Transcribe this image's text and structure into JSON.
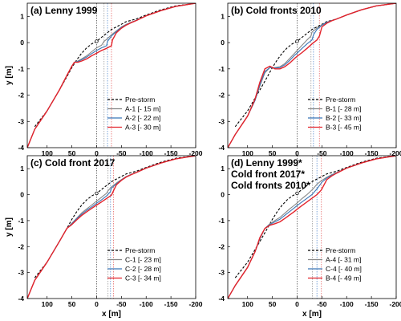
{
  "chart_data": [
    {
      "type": "line",
      "title": "(a) Lenny 1999",
      "title_lines": [
        "(a) Lenny 1999"
      ],
      "xlabel": "",
      "ylabel": "y [m]",
      "xlim": [
        140,
        -200
      ],
      "ylim": [
        -4,
        1.5
      ],
      "xticks": [
        100,
        50,
        0,
        -50,
        -100,
        -150,
        -200
      ],
      "yticks": [
        1,
        0,
        -1,
        -2,
        -3,
        -4
      ],
      "legend_position": "bottom-right",
      "colors": {
        "Pre-storm": "#000000",
        "1": "#888888",
        "2": "#3b76b7",
        "3": "#e3232b"
      },
      "vlines": [
        {
          "x": 0,
          "color": "#555555"
        },
        {
          "x": -15,
          "color": "#999999"
        },
        {
          "x": -22,
          "color": "#5b8fd0"
        },
        {
          "x": -30,
          "color": "#e66a6a"
        }
      ],
      "series": [
        {
          "name": "Pre-storm",
          "dashed": true,
          "x": [
            125,
            100,
            75,
            60,
            50,
            40,
            30,
            20,
            10,
            0,
            -10,
            -20,
            -30,
            -40,
            -50,
            -60,
            -70,
            -80,
            -100,
            -130,
            -160,
            -200
          ],
          "y": [
            -3.2,
            -2.6,
            -1.8,
            -1.3,
            -0.95,
            -0.65,
            -0.4,
            -0.2,
            -0.05,
            0.05,
            0.2,
            0.35,
            0.5,
            0.6,
            0.7,
            0.8,
            0.85,
            0.9,
            1.05,
            1.25,
            1.4,
            1.5
          ]
        },
        {
          "name": "A-1 [- 15 m]",
          "x": [
            140,
            125,
            100,
            75,
            60,
            50,
            45,
            38,
            30,
            20,
            10,
            0,
            -10,
            -15,
            -20,
            -30,
            -40,
            -50,
            -60,
            -70,
            -80,
            -100,
            -130,
            -160,
            -200
          ],
          "y": [
            -4,
            -3.3,
            -2.6,
            -1.8,
            -1.25,
            -0.9,
            -0.75,
            -0.7,
            -0.62,
            -0.5,
            -0.35,
            -0.2,
            -0.1,
            0.05,
            0.12,
            0.3,
            0.45,
            0.6,
            0.7,
            0.78,
            0.85,
            1.02,
            1.22,
            1.38,
            1.5
          ]
        },
        {
          "name": "A-2 [- 22 m]",
          "x": [
            140,
            125,
            100,
            75,
            60,
            50,
            45,
            38,
            30,
            20,
            10,
            0,
            -10,
            -20,
            -22,
            -30,
            -40,
            -50,
            -60,
            -70,
            -80,
            -100,
            -130,
            -160,
            -200
          ],
          "y": [
            -4,
            -3.3,
            -2.6,
            -1.8,
            -1.25,
            -0.9,
            -0.75,
            -0.72,
            -0.65,
            -0.55,
            -0.42,
            -0.3,
            -0.2,
            -0.12,
            0.05,
            0.25,
            0.42,
            0.58,
            0.68,
            0.77,
            0.85,
            1.02,
            1.22,
            1.38,
            1.5
          ]
        },
        {
          "name": "A-3 [- 30 m]",
          "x": [
            140,
            125,
            100,
            75,
            60,
            50,
            45,
            38,
            30,
            20,
            10,
            0,
            -10,
            -20,
            -30,
            -32,
            -40,
            -50,
            -60,
            -70,
            -80,
            -100,
            -130,
            -160,
            -200
          ],
          "y": [
            -4,
            -3.3,
            -2.6,
            -1.8,
            -1.25,
            -0.9,
            -0.75,
            -0.75,
            -0.7,
            -0.62,
            -0.5,
            -0.4,
            -0.3,
            -0.22,
            -0.12,
            0.1,
            0.38,
            0.55,
            0.67,
            0.76,
            0.84,
            1.02,
            1.22,
            1.38,
            1.5
          ]
        }
      ]
    },
    {
      "type": "line",
      "title": "(b) Cold fronts 2010",
      "title_lines": [
        "(b) Cold fronts 2010"
      ],
      "xlabel": "",
      "ylabel": "",
      "xlim": [
        140,
        -200
      ],
      "ylim": [
        -4,
        1.5
      ],
      "xticks": [
        100,
        50,
        0,
        -50,
        -100,
        -150,
        -200
      ],
      "yticks": [
        1,
        0,
        -1,
        -2,
        -3,
        -4
      ],
      "legend_position": "bottom-right",
      "colors": {
        "Pre-storm": "#000000",
        "1": "#888888",
        "2": "#3b76b7",
        "3": "#e3232b"
      },
      "vlines": [
        {
          "x": 0,
          "color": "#555555"
        },
        {
          "x": -28,
          "color": "#999999"
        },
        {
          "x": -33,
          "color": "#5b8fd0"
        },
        {
          "x": -45,
          "color": "#e66a6a"
        }
      ],
      "series": [
        {
          "name": "Pre-storm",
          "dashed": true,
          "x": [
            125,
            100,
            75,
            60,
            50,
            40,
            30,
            20,
            10,
            0,
            -10,
            -20,
            -30,
            -40,
            -50,
            -60,
            -70,
            -80,
            -100,
            -130,
            -160,
            -200
          ],
          "y": [
            -3.2,
            -2.6,
            -1.8,
            -1.3,
            -0.95,
            -0.65,
            -0.4,
            -0.2,
            -0.05,
            0.05,
            0.2,
            0.35,
            0.5,
            0.6,
            0.7,
            0.8,
            0.85,
            0.9,
            1.05,
            1.25,
            1.4,
            1.5
          ]
        },
        {
          "name": "B-1 [- 28 m]",
          "x": [
            140,
            125,
            100,
            85,
            75,
            65,
            55,
            45,
            35,
            25,
            15,
            5,
            0,
            -10,
            -20,
            -28,
            -30,
            -40,
            -50,
            -60,
            -70,
            -80,
            -100,
            -130,
            -160,
            -200
          ],
          "y": [
            -4,
            -3.5,
            -2.8,
            -2.2,
            -1.65,
            -1.15,
            -0.95,
            -0.95,
            -0.92,
            -0.8,
            -0.6,
            -0.4,
            -0.3,
            -0.1,
            0.1,
            0.25,
            0.4,
            0.55,
            0.68,
            0.78,
            0.84,
            0.9,
            1.05,
            1.25,
            1.4,
            1.5
          ]
        },
        {
          "name": "B-2 [- 33 m]",
          "x": [
            140,
            125,
            100,
            85,
            75,
            65,
            55,
            45,
            35,
            25,
            15,
            5,
            0,
            -10,
            -20,
            -30,
            -33,
            -40,
            -50,
            -60,
            -70,
            -80,
            -100,
            -130,
            -160,
            -200
          ],
          "y": [
            -4,
            -3.5,
            -2.8,
            -2.2,
            -1.6,
            -1.1,
            -0.95,
            -0.97,
            -0.95,
            -0.85,
            -0.68,
            -0.48,
            -0.4,
            -0.22,
            -0.05,
            0.1,
            0.3,
            0.5,
            0.66,
            0.77,
            0.84,
            0.9,
            1.05,
            1.25,
            1.4,
            1.5
          ]
        },
        {
          "name": "B-3 [- 45 m]",
          "x": [
            140,
            125,
            100,
            85,
            75,
            65,
            55,
            45,
            35,
            25,
            15,
            5,
            0,
            -10,
            -20,
            -30,
            -40,
            -45,
            -50,
            -60,
            -70,
            -80,
            -100,
            -130,
            -160,
            -200
          ],
          "y": [
            -4,
            -3.5,
            -2.8,
            -2.15,
            -1.5,
            -1.0,
            -0.9,
            -1.0,
            -1.0,
            -0.92,
            -0.78,
            -0.6,
            -0.52,
            -0.38,
            -0.22,
            -0.05,
            0.1,
            0.25,
            0.6,
            0.74,
            0.83,
            0.9,
            1.05,
            1.25,
            1.4,
            1.5
          ]
        }
      ]
    },
    {
      "type": "line",
      "title": "(c) Cold front 2017",
      "title_lines": [
        "(c) Cold front 2017"
      ],
      "xlabel": "x [m]",
      "ylabel": "y [m]",
      "xlim": [
        140,
        -200
      ],
      "ylim": [
        -4,
        1.5
      ],
      "xticks": [
        100,
        50,
        0,
        -50,
        -100,
        -150,
        -200
      ],
      "yticks": [
        1,
        0,
        -1,
        -2,
        -3,
        -4
      ],
      "legend_position": "bottom-right",
      "colors": {
        "Pre-storm": "#000000",
        "1": "#888888",
        "2": "#3b76b7",
        "3": "#e3232b"
      },
      "vlines": [
        {
          "x": 0,
          "color": "#555555"
        },
        {
          "x": -23,
          "color": "#999999"
        },
        {
          "x": -28,
          "color": "#5b8fd0"
        },
        {
          "x": -34,
          "color": "#e66a6a"
        }
      ],
      "series": [
        {
          "name": "Pre-storm",
          "dashed": true,
          "x": [
            125,
            100,
            75,
            60,
            50,
            40,
            30,
            20,
            10,
            0,
            -10,
            -20,
            -30,
            -40,
            -50,
            -60,
            -70,
            -80,
            -100,
            -130,
            -160,
            -200
          ],
          "y": [
            -3.2,
            -2.6,
            -1.8,
            -1.3,
            -0.95,
            -0.65,
            -0.4,
            -0.2,
            -0.05,
            0.05,
            0.2,
            0.35,
            0.5,
            0.6,
            0.7,
            0.8,
            0.85,
            0.9,
            1.05,
            1.25,
            1.4,
            1.5
          ]
        },
        {
          "name": "C-1 [- 23 m]",
          "x": [
            140,
            125,
            100,
            75,
            60,
            50,
            40,
            30,
            20,
            10,
            0,
            -10,
            -20,
            -23,
            -30,
            -40,
            -50,
            -60,
            -70,
            -80,
            -100,
            -130,
            -160,
            -200
          ],
          "y": [
            -4,
            -3.3,
            -2.6,
            -1.8,
            -1.3,
            -1.1,
            -0.9,
            -0.7,
            -0.55,
            -0.4,
            -0.25,
            -0.1,
            0.05,
            0.15,
            0.3,
            0.45,
            0.58,
            0.7,
            0.78,
            0.85,
            1.02,
            1.22,
            1.38,
            1.5
          ]
        },
        {
          "name": "C-2 [- 28 m]",
          "x": [
            140,
            125,
            100,
            75,
            60,
            50,
            40,
            30,
            20,
            10,
            0,
            -10,
            -20,
            -28,
            -30,
            -40,
            -50,
            -60,
            -70,
            -80,
            -100,
            -130,
            -160,
            -200
          ],
          "y": [
            -4,
            -3.3,
            -2.6,
            -1.8,
            -1.3,
            -1.12,
            -0.92,
            -0.75,
            -0.6,
            -0.47,
            -0.33,
            -0.2,
            -0.05,
            0.12,
            0.25,
            0.42,
            0.57,
            0.69,
            0.78,
            0.85,
            1.02,
            1.22,
            1.38,
            1.5
          ]
        },
        {
          "name": "C-3 [- 34 m]",
          "x": [
            140,
            125,
            100,
            75,
            60,
            50,
            40,
            30,
            20,
            10,
            0,
            -10,
            -20,
            -30,
            -34,
            -40,
            -50,
            -60,
            -70,
            -80,
            -100,
            -130,
            -160,
            -200
          ],
          "y": [
            -4,
            -3.3,
            -2.6,
            -1.8,
            -1.3,
            -1.15,
            -0.97,
            -0.8,
            -0.66,
            -0.53,
            -0.4,
            -0.28,
            -0.15,
            -0.02,
            0.15,
            0.38,
            0.55,
            0.68,
            0.77,
            0.85,
            1.02,
            1.22,
            1.38,
            1.5
          ]
        }
      ]
    },
    {
      "type": "line",
      "title": "(d) Lenny 1999* Cold front 2017* Cold fronts 2010*",
      "title_lines": [
        "(d) Lenny 1999*",
        "Cold front 2017*",
        "Cold fronts 2010*"
      ],
      "xlabel": "x [m]",
      "ylabel": "",
      "xlim": [
        140,
        -200
      ],
      "ylim": [
        -4,
        1.5
      ],
      "xticks": [
        100,
        50,
        0,
        -50,
        -100,
        -150,
        -200
      ],
      "yticks": [
        1,
        0,
        -1,
        -2,
        -3,
        -4
      ],
      "legend_position": "bottom-right",
      "colors": {
        "Pre-storm": "#000000",
        "1": "#888888",
        "2": "#3b76b7",
        "3": "#e3232b"
      },
      "vlines": [
        {
          "x": 0,
          "color": "#555555"
        },
        {
          "x": -31,
          "color": "#999999"
        },
        {
          "x": -40,
          "color": "#5b8fd0"
        },
        {
          "x": -49,
          "color": "#e66a6a"
        }
      ],
      "series": [
        {
          "name": "Pre-storm",
          "dashed": true,
          "x": [
            125,
            100,
            75,
            60,
            50,
            40,
            30,
            20,
            10,
            0,
            -10,
            -20,
            -30,
            -40,
            -50,
            -60,
            -70,
            -80,
            -100,
            -130,
            -160,
            -200
          ],
          "y": [
            -3.2,
            -2.6,
            -1.8,
            -1.3,
            -0.95,
            -0.65,
            -0.4,
            -0.2,
            -0.05,
            0.05,
            0.2,
            0.35,
            0.5,
            0.6,
            0.7,
            0.8,
            0.85,
            0.9,
            1.05,
            1.25,
            1.4,
            1.5
          ]
        },
        {
          "name": "A-4 [- 31 m]",
          "x": [
            140,
            125,
            100,
            85,
            75,
            65,
            55,
            45,
            35,
            25,
            15,
            5,
            0,
            -10,
            -20,
            -31,
            -40,
            -50,
            -60,
            -70,
            -80,
            -100,
            -130,
            -160,
            -200
          ],
          "y": [
            -4,
            -3.5,
            -2.8,
            -2.2,
            -1.7,
            -1.3,
            -1.12,
            -1.0,
            -0.88,
            -0.72,
            -0.55,
            -0.4,
            -0.32,
            -0.15,
            0.0,
            0.2,
            0.4,
            0.55,
            0.67,
            0.77,
            0.85,
            1.02,
            1.22,
            1.38,
            1.5
          ]
        },
        {
          "name": "C-4 [- 40 m]",
          "x": [
            140,
            125,
            100,
            85,
            75,
            65,
            55,
            45,
            35,
            25,
            15,
            5,
            0,
            -10,
            -20,
            -30,
            -40,
            -50,
            -60,
            -70,
            -80,
            -100,
            -130,
            -160,
            -200
          ],
          "y": [
            -4,
            -3.5,
            -2.8,
            -2.2,
            -1.68,
            -1.3,
            -1.15,
            -1.05,
            -0.95,
            -0.8,
            -0.65,
            -0.5,
            -0.42,
            -0.28,
            -0.14,
            0.0,
            0.22,
            0.48,
            0.64,
            0.75,
            0.84,
            1.02,
            1.22,
            1.38,
            1.5
          ]
        },
        {
          "name": "B-4 [- 49 m]",
          "x": [
            140,
            125,
            100,
            85,
            75,
            65,
            55,
            45,
            35,
            25,
            15,
            5,
            0,
            -10,
            -20,
            -30,
            -40,
            -49,
            -60,
            -70,
            -80,
            -100,
            -130,
            -160,
            -200
          ],
          "y": [
            -4,
            -3.5,
            -2.8,
            -2.2,
            -1.65,
            -1.3,
            -1.18,
            -1.12,
            -1.05,
            -0.92,
            -0.78,
            -0.64,
            -0.56,
            -0.42,
            -0.28,
            -0.14,
            0.0,
            0.18,
            0.58,
            0.72,
            0.83,
            1.02,
            1.22,
            1.38,
            1.5
          ]
        }
      ]
    }
  ]
}
